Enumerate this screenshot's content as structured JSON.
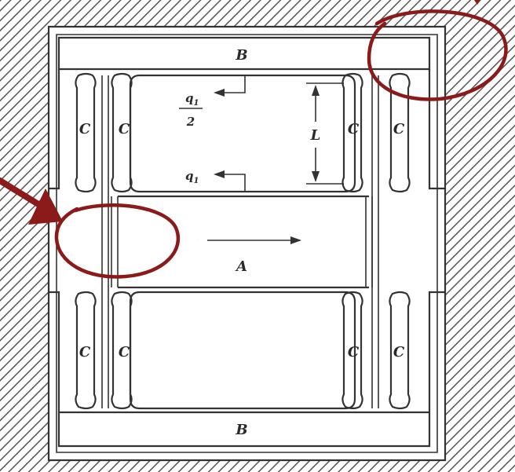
{
  "diagram": {
    "labels": {
      "block_b": "B",
      "block_a": "A",
      "flexure": "C",
      "force_half_num": "q",
      "force_half_sub": "1",
      "force_half_den": "2",
      "force_full": "q",
      "force_full_sub": "1",
      "length": "L"
    }
  },
  "colors": {
    "line": "#333333",
    "hatch": "#555555",
    "annotation": "#8b1a1a",
    "background": "#ffffff"
  },
  "annotations": {
    "circles": 2,
    "arrows": 1
  }
}
